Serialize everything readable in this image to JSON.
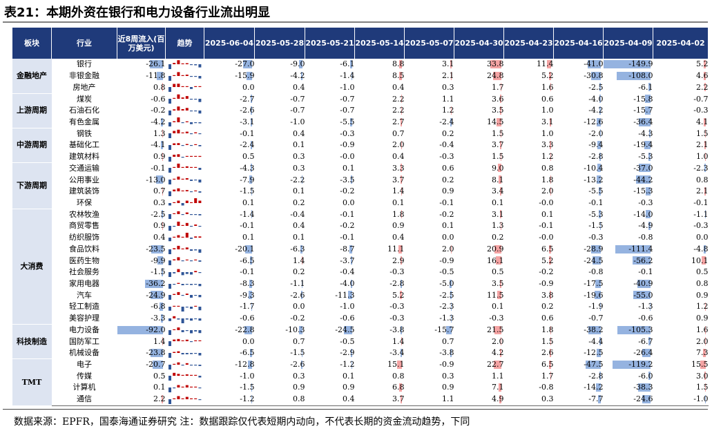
{
  "title": "表21：本期外资在银行和电力设备行业流出明显",
  "headers": {
    "sector": "板块",
    "industry": "行业",
    "inflow": "近8周流入(百万美元)",
    "trend": "趋势",
    "dates": [
      "2025-06-04",
      "2025-05-28",
      "2025-05-21",
      "2025-05-14",
      "2025-05-07",
      "2025-04-30",
      "2025-04-23",
      "2025-04-16",
      "2025-04-09",
      "2025-04-02"
    ]
  },
  "colors": {
    "header_bg": "#1f3a7a",
    "positive": "#f4a3a3",
    "negative": "#95b3e0",
    "sector_bg": "#dde4f1",
    "trend_pos": "#c00000",
    "trend_neg": "#2f5597"
  },
  "groups": [
    {
      "name": "金融地产",
      "rows": [
        {
          "industry": "银行",
          "inflow": "-26.1",
          "values": [
            "-27.0",
            "-9.0",
            "-6.1",
            "8.8",
            "3.1",
            "33.8",
            "11.4",
            "-41.0",
            "-149.9",
            "5.2"
          ]
        },
        {
          "industry": "非银金融",
          "inflow": "-11.8",
          "values": [
            "-15.9",
            "-4.2",
            "-1.4",
            "8.5",
            "2.1",
            "24.8",
            "5.2",
            "-30.8",
            "-108.0",
            "4.6"
          ]
        },
        {
          "industry": "房地产",
          "inflow": "0.8",
          "values": [
            "0.0",
            "0.4",
            "-1.0",
            "0.4",
            "0.3",
            "1.7",
            "1.6",
            "-2.5",
            "-6.1",
            "2.2"
          ]
        }
      ]
    },
    {
      "name": "上游周期",
      "rows": [
        {
          "industry": "煤炭",
          "inflow": "-0.6",
          "values": [
            "-2.7",
            "-0.7",
            "-0.7",
            "2.2",
            "1.1",
            "3.6",
            "0.6",
            "-4.0",
            "-15.8",
            "-0.7"
          ]
        },
        {
          "industry": "石油石化",
          "inflow": "-0.2",
          "values": [
            "-2.6",
            "-0.7",
            "-0.7",
            "2.2",
            "1.2",
            "3.5",
            "1.0",
            "-4.2",
            "-15.7",
            "-0.3"
          ]
        },
        {
          "industry": "有色金属",
          "inflow": "-4.2",
          "values": [
            "-3.1",
            "-1.0",
            "-5.5",
            "2.7",
            "-2.4",
            "14.5",
            "3.1",
            "-12.6",
            "-36.4",
            "4.1"
          ]
        }
      ]
    },
    {
      "name": "中游周期",
      "rows": [
        {
          "industry": "钢铁",
          "inflow": "1.3",
          "values": [
            "-0.1",
            "0.4",
            "-0.3",
            "0.7",
            "0.2",
            "1.5",
            "1.0",
            "-2.0",
            "-4.3",
            "1.5"
          ]
        },
        {
          "industry": "基础化工",
          "inflow": "-4.1",
          "values": [
            "-2.4",
            "0.1",
            "-0.9",
            "2.0",
            "-0.4",
            "3.7",
            "3.3",
            "-9.4",
            "-19.4",
            "2.1"
          ]
        },
        {
          "industry": "建筑材料",
          "inflow": "0.9",
          "values": [
            "0.5",
            "0.3",
            "-0.0",
            "0.4",
            "-0.3",
            "1.5",
            "1.2",
            "-2.8",
            "-5.3",
            "1.0"
          ]
        }
      ]
    },
    {
      "name": "下游周期",
      "rows": [
        {
          "industry": "交通运输",
          "inflow": "-0.1",
          "values": [
            "-4.3",
            "0.3",
            "0.1",
            "3.3",
            "0.6",
            "9.0",
            "0.8",
            "-10.4",
            "-37.0",
            "-2.3"
          ]
        },
        {
          "industry": "公用事业",
          "inflow": "-13.0",
          "values": [
            "-7.9",
            "-2.2",
            "-3.5",
            "3.7",
            "0.2",
            "8.1",
            "1.8",
            "-13.2",
            "-44.2",
            "0.8"
          ]
        },
        {
          "industry": "建筑装饰",
          "inflow": "0.7",
          "values": [
            "-1.5",
            "0.1",
            "-0.2",
            "1.4",
            "0.9",
            "3.4",
            "2.0",
            "-5.5",
            "-15.3",
            "2.1"
          ]
        },
        {
          "industry": "环保",
          "inflow": "0.3",
          "values": [
            "0.1",
            "0.2",
            "0.0",
            "0.1",
            "-0.1",
            "0.1",
            "-0.0",
            "-0.1",
            "-0.3",
            "-0.1"
          ]
        }
      ]
    },
    {
      "name": "大消费",
      "rows": [
        {
          "industry": "农林牧渔",
          "inflow": "-2.5",
          "values": [
            "-1.4",
            "-0.4",
            "-0.1",
            "1.8",
            "-0.2",
            "3.1",
            "0.1",
            "-5.3",
            "-14.0",
            "-1.1"
          ]
        },
        {
          "industry": "商贸零售",
          "inflow": "0.9",
          "values": [
            "-0.1",
            "0.4",
            "-0.2",
            "0.9",
            "0.1",
            "1.3",
            "-0.1",
            "-1.5",
            "-4.9",
            "-0.3"
          ]
        },
        {
          "industry": "纺织服饰",
          "inflow": "0.4",
          "values": [
            "0.1",
            "0.1",
            "-0.1",
            "0.4",
            "0.0",
            "0.2",
            "-0.0",
            "-0.3",
            "-0.8",
            "0.0"
          ]
        },
        {
          "industry": "食品饮料",
          "inflow": "-23.5",
          "values": [
            "-20.1",
            "-6.3",
            "-8.7",
            "11.1",
            "2.0",
            "20.9",
            "6.5",
            "-28.9",
            "-111.4",
            "-4.8"
          ]
        },
        {
          "industry": "医药生物",
          "inflow": "-9.9",
          "values": [
            "-6.5",
            "1.4",
            "-3.7",
            "2.9",
            "-0.9",
            "16.1",
            "5.2",
            "-24.5",
            "-56.2",
            "10.1"
          ]
        },
        {
          "industry": "社会服务",
          "inflow": "-1.5",
          "values": [
            "-0.1",
            "0.2",
            "-0.4",
            "-0.3",
            "-0.5",
            "0.5",
            "-0.2",
            "-0.8",
            "-0.1",
            "0.5"
          ]
        },
        {
          "industry": "家用电器",
          "inflow": "-36.2",
          "values": [
            "-8.3",
            "-1.1",
            "-4.0",
            "-2.8",
            "-5.0",
            "3.5",
            "-0.9",
            "-17.5",
            "-40.9",
            "0.8"
          ]
        },
        {
          "industry": "汽车",
          "inflow": "-24.9",
          "values": [
            "-9.3",
            "-2.6",
            "-11.3",
            "5.2",
            "-2.5",
            "11.5",
            "3.8",
            "-19.6",
            "-55.0",
            "0.9"
          ]
        },
        {
          "industry": "轻工制造",
          "inflow": "-6.8",
          "values": [
            "-1.7",
            "0.0",
            "-1.0",
            "-0.3",
            "-2.3",
            "0.1",
            "0.2",
            "-1.9",
            "-1.3",
            "1.2"
          ]
        },
        {
          "industry": "美容护理",
          "inflow": "-3.3",
          "values": [
            "-0.6",
            "-0.2",
            "-0.6",
            "-0.3",
            "-1.3",
            "-0.3",
            "0.6",
            "-0.7",
            "-0.6",
            "0.9"
          ]
        }
      ]
    },
    {
      "name": "科技制造",
      "rows": [
        {
          "industry": "电力设备",
          "inflow": "-92.0",
          "values": [
            "-22.8",
            "-10.3",
            "-24.5",
            "-3.8",
            "-15.7",
            "21.5",
            "1.8",
            "-38.2",
            "-105.3",
            "1.6"
          ]
        },
        {
          "industry": "国防军工",
          "inflow": "1.4",
          "values": [
            "0.0",
            "0.7",
            "-0.5",
            "1.4",
            "0.7",
            "2.0",
            "1.5",
            "-4.4",
            "-6.7",
            "2.0"
          ]
        },
        {
          "industry": "机械设备",
          "inflow": "-23.8",
          "values": [
            "-6.5",
            "-1.5",
            "-2.9",
            "-3.4",
            "-3.8",
            "4.2",
            "2.6",
            "-12.5",
            "-26.4",
            "7.3"
          ]
        }
      ]
    },
    {
      "name": "TMT",
      "rows": [
        {
          "industry": "电子",
          "inflow": "-20.7",
          "values": [
            "-12.8",
            "-2.6",
            "-1.2",
            "15.1",
            "-0.9",
            "22.7",
            "6.5",
            "-47.5",
            "-119.2",
            "15.5"
          ]
        },
        {
          "industry": "传媒",
          "inflow": "0.5",
          "values": [
            "-1.0",
            "0.3",
            "0.1",
            "0.8",
            "0.3",
            "1.1",
            "1.7",
            "-2.8",
            "-6.0",
            "3.0"
          ]
        },
        {
          "industry": "计算机",
          "inflow": "0.1",
          "values": [
            "-1.5",
            "0.9",
            "0.9",
            "6.8",
            "0.9",
            "7.1",
            "-0.8",
            "-14.2",
            "-38.3",
            "1.5"
          ]
        },
        {
          "industry": "通信",
          "inflow": "2.2",
          "values": [
            "-1.2",
            "0.8",
            "0.4",
            "3.7",
            "1.1",
            "4.9",
            "0.3",
            "-7.7",
            "-24.6",
            "-1.0"
          ]
        }
      ]
    }
  ],
  "footer": "数据来源：EPFR，国泰海通证券研究  注：数据跟踪仅代表短期内动向，不代表长期的资金流动趋势，下同"
}
